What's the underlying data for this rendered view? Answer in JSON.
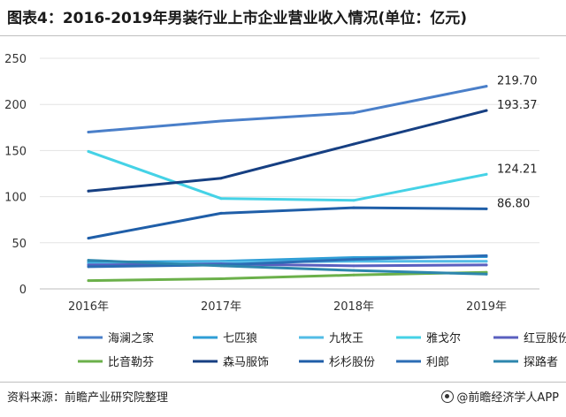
{
  "header": {
    "title": "图表4：2016-2019年男装行业上市企业营业收入情况(单位：亿元)"
  },
  "footer": {
    "source": "资料来源：前瞻产业研究院整理",
    "credit": "@前瞻经济学人APP"
  },
  "colors": {
    "海澜之家": "#4a7fc9",
    "七匹狼": "#2f9ed6",
    "九牧王": "#52bce6",
    "雅戈尔": "#45d2e6",
    "红豆股份": "#5a5fbf",
    "比音勒芬": "#6bb04a",
    "森马服饰": "#163f82",
    "杉杉股份": "#1f5ea8",
    "利郎": "#2b6db5",
    "探路者": "#2d86ad"
  },
  "chart_data": {
    "type": "line",
    "x": [
      "2016年",
      "2017年",
      "2018年",
      "2019年"
    ],
    "ylim": [
      0,
      250
    ],
    "yticks": [
      0,
      50,
      100,
      150,
      200,
      250
    ],
    "grid": true,
    "legend": "bottom",
    "series": [
      {
        "name": "海澜之家",
        "values": [
          170.0,
          182.0,
          190.9,
          219.7
        ],
        "end_label": "219.70"
      },
      {
        "name": "七匹狼",
        "values": [
          29.0,
          30.0,
          34.0,
          35.0
        ]
      },
      {
        "name": "九牧王",
        "values": [
          27.0,
          29.0,
          30.0,
          30.0
        ]
      },
      {
        "name": "雅戈尔",
        "values": [
          149.0,
          98.0,
          96.0,
          124.21
        ],
        "end_label": "124.21"
      },
      {
        "name": "红豆股份",
        "values": [
          26.0,
          27.0,
          25.0,
          26.0
        ]
      },
      {
        "name": "比音勒芬",
        "values": [
          9.0,
          11.0,
          15.0,
          18.0
        ]
      },
      {
        "name": "森马服饰",
        "values": [
          106.0,
          120.0,
          157.0,
          193.37
        ],
        "end_label": "193.37"
      },
      {
        "name": "杉杉股份",
        "values": [
          55.0,
          82.0,
          88.0,
          86.8
        ],
        "end_label": "86.80"
      },
      {
        "name": "利郎",
        "values": [
          24.0,
          26.0,
          32.0,
          36.0
        ]
      },
      {
        "name": "探路者",
        "values": [
          31.0,
          25.0,
          20.0,
          16.0
        ]
      }
    ]
  }
}
